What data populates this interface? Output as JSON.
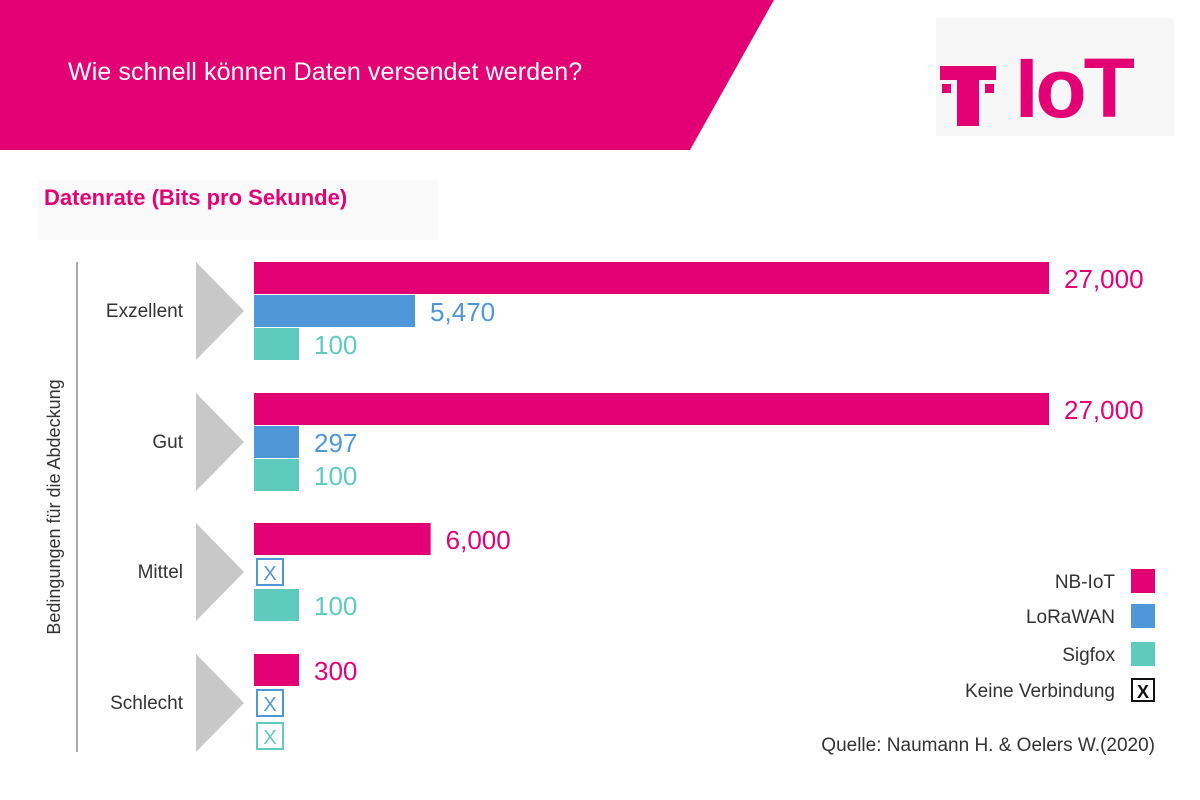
{
  "header": {
    "title": "Wie schnell können Daten versendet werden?",
    "logo_text": "IoT",
    "brand_color": "#e20074"
  },
  "chart_data": {
    "type": "bar",
    "orientation": "horizontal",
    "title": "Datenrate (Bits pro Sekunde)",
    "ylabel": "Bedingungen für die Abdeckung",
    "categories": [
      "Exzellent",
      "Gut",
      "Mittel",
      "Schlecht"
    ],
    "series": [
      {
        "name": "NB-IoT",
        "color": "#e20074",
        "values": [
          27000,
          27000,
          6000,
          300
        ],
        "labels": [
          "27,000",
          "27,000",
          "6,000",
          "300"
        ]
      },
      {
        "name": "LoRaWAN",
        "color": "#4f97d7",
        "values": [
          5470,
          297,
          null,
          null
        ],
        "labels": [
          "5,470",
          "297",
          "",
          ""
        ]
      },
      {
        "name": "Sigfox",
        "color": "#5fcbbf",
        "values": [
          100,
          100,
          100,
          null
        ],
        "labels": [
          "100",
          "100",
          "100",
          ""
        ]
      }
    ],
    "no_connection": {
      "label": "Keine Verbindung",
      "symbol": "X"
    },
    "source": "Quelle: Naumann H. & Oelers W.(2020)",
    "legend_position": "bottom-right",
    "grid": false
  }
}
